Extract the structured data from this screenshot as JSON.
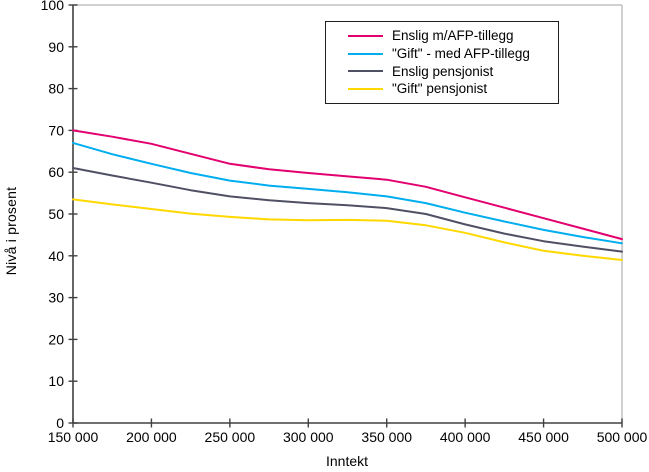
{
  "chart_data": {
    "type": "line",
    "title": "",
    "xlabel": "Inntekt",
    "ylabel": "Nivå i prosent",
    "xlim": [
      150000,
      500000
    ],
    "ylim": [
      0,
      100
    ],
    "grid": "off",
    "legend_position": "top-center-inside",
    "x_ticks": [
      150000,
      200000,
      250000,
      300000,
      350000,
      400000,
      450000,
      500000
    ],
    "x_tick_labels": [
      "150 000",
      "200 000",
      "250 000",
      "300 000",
      "350 000",
      "400 000",
      "450 000",
      "500 000"
    ],
    "y_ticks": [
      0,
      10,
      20,
      30,
      40,
      50,
      60,
      70,
      80,
      90,
      100
    ],
    "x": [
      150000,
      175000,
      200000,
      225000,
      250000,
      275000,
      300000,
      325000,
      350000,
      375000,
      400000,
      425000,
      450000,
      475000,
      500000
    ],
    "series": [
      {
        "name": "Enslig m/AFP-tillegg",
        "color": "#E2006F",
        "values": [
          70,
          68.5,
          66.8,
          64.4,
          62,
          60.7,
          59.8,
          59,
          58.2,
          56.5,
          54,
          51.5,
          49,
          46.5,
          44
        ]
      },
      {
        "name": "\"Gift\" - med AFP-tillegg",
        "color": "#00AEEF",
        "values": [
          67,
          64.3,
          62,
          59.8,
          58,
          56.8,
          56,
          55.2,
          54.2,
          52.6,
          50.3,
          48.2,
          46.2,
          44.5,
          43
        ]
      },
      {
        "name": "Enslig pensjonist",
        "color": "#505064",
        "values": [
          61,
          59.2,
          57.5,
          55.7,
          54.2,
          53.3,
          52.6,
          52.1,
          51.4,
          50,
          47.5,
          45.3,
          43.5,
          42.2,
          41
        ]
      },
      {
        "name": "\"Gift\" pensjonist",
        "color": "#FFD800",
        "values": [
          53.5,
          52.3,
          51.2,
          50.1,
          49.3,
          48.7,
          48.5,
          48.6,
          48.4,
          47.3,
          45.5,
          43.2,
          41.2,
          40,
          39
        ]
      }
    ],
    "colors": {
      "axis": "#404040",
      "plot_border": "#C0C0C0",
      "tick_text": "#000000"
    }
  }
}
